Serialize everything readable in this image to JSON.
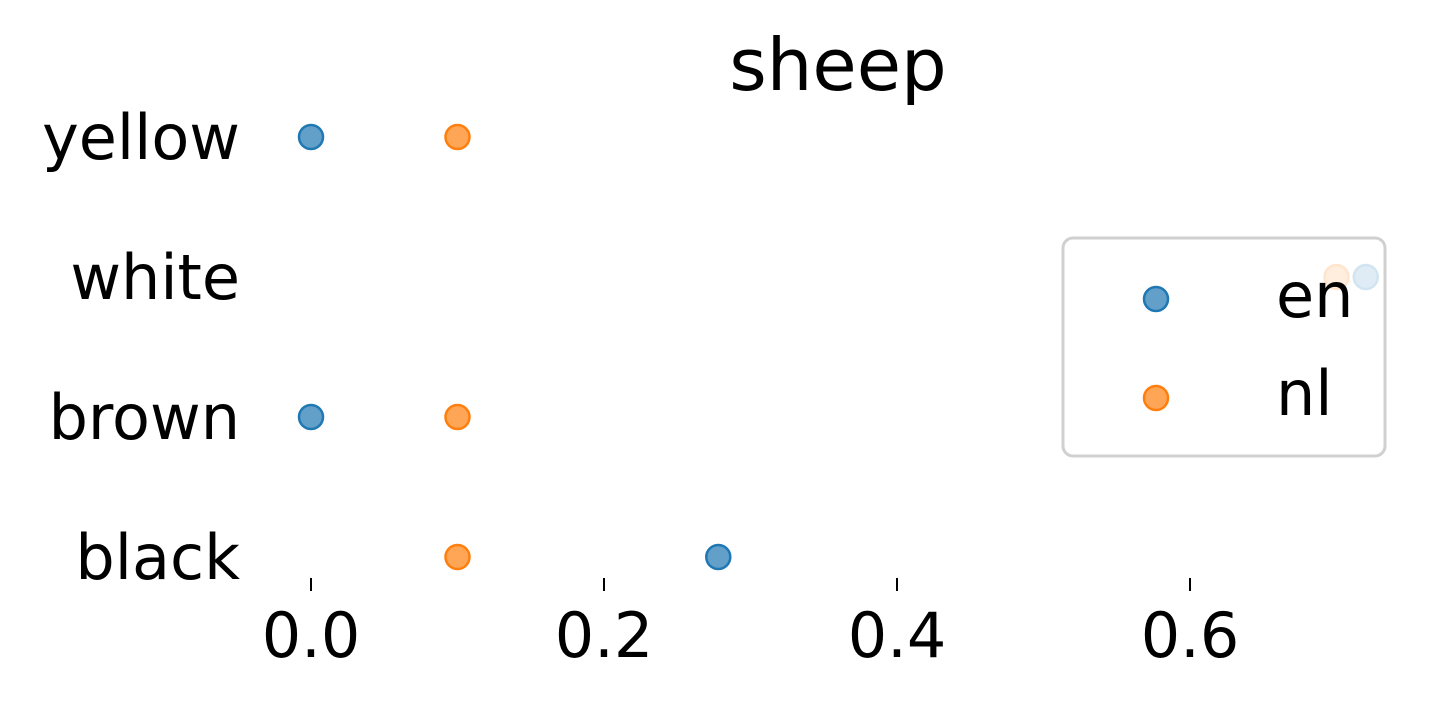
{
  "chart_data": {
    "type": "scatter",
    "title": "sheep",
    "categories": [
      "yellow",
      "white",
      "brown",
      "black"
    ],
    "series": [
      {
        "name": "en",
        "color": "#1f77b4",
        "values": [
          0.0,
          0.72,
          0.0,
          0.278
        ]
      },
      {
        "name": "nl",
        "color": "#ff7f0e",
        "values": [
          0.1,
          0.7,
          0.1,
          0.1
        ]
      }
    ],
    "xticks": [
      "0.0",
      "0.2",
      "0.4",
      "0.6"
    ],
    "xtick_values": [
      0.0,
      0.2,
      0.4,
      0.6
    ],
    "xlim": [
      0.0,
      0.72
    ],
    "legend_location": "center-right",
    "grid": false,
    "marker_alpha": 0.7
  }
}
